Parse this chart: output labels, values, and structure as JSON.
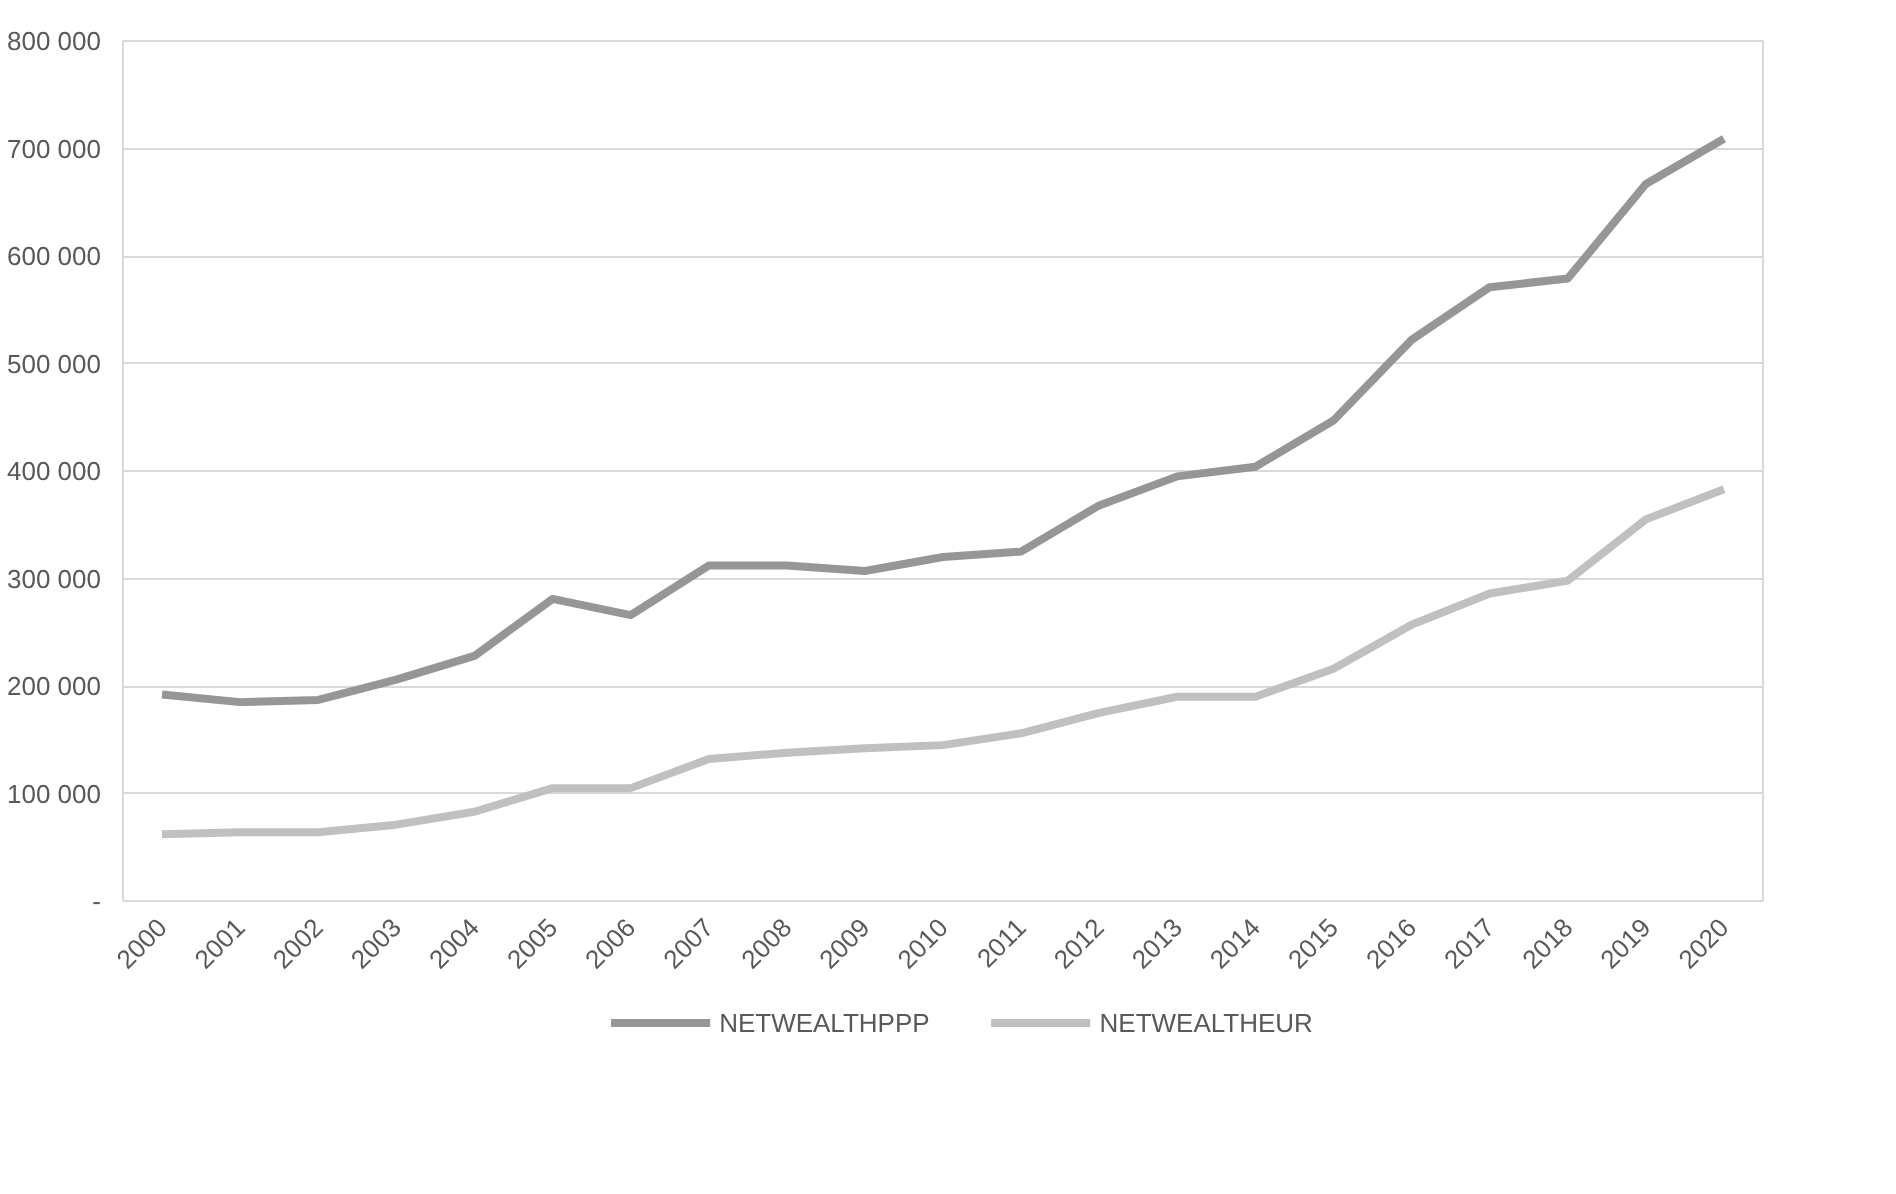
{
  "chart_data": {
    "type": "line",
    "categories": [
      "2000",
      "2001",
      "2002",
      "2003",
      "2004",
      "2005",
      "2006",
      "2007",
      "2008",
      "2009",
      "2010",
      "2011",
      "2012",
      "2013",
      "2014",
      "2015",
      "2016",
      "2017",
      "2018",
      "2019",
      "2020"
    ],
    "series": [
      {
        "name": "NETWEALTHPPP",
        "color": "#969696",
        "values": [
          192000,
          185000,
          187000,
          206000,
          228000,
          281000,
          266000,
          312000,
          312000,
          307000,
          320000,
          325000,
          368000,
          395000,
          404000,
          447000,
          522000,
          571000,
          579000,
          667000,
          709000
        ]
      },
      {
        "name": "NETWEALTHEUR",
        "color": "#c0c0c0",
        "values": [
          62000,
          64000,
          64000,
          71000,
          83000,
          105000,
          105000,
          132000,
          138000,
          142000,
          145000,
          156000,
          175000,
          190000,
          190000,
          216000,
          257000,
          286000,
          298000,
          355000,
          383000
        ]
      }
    ],
    "ylim": [
      0,
      800000
    ],
    "yticks": [
      {
        "value": 0,
        "label": "-"
      },
      {
        "value": 100000,
        "label": "100 000"
      },
      {
        "value": 200000,
        "label": "200 000"
      },
      {
        "value": 300000,
        "label": "300 000"
      },
      {
        "value": 400000,
        "label": "400 000"
      },
      {
        "value": 500000,
        "label": "500 000"
      },
      {
        "value": 600000,
        "label": "600 000"
      },
      {
        "value": 700000,
        "label": "700 000"
      },
      {
        "value": 800000,
        "label": "800 000"
      }
    ],
    "grid": "y",
    "legend": "bottom",
    "marker": "none",
    "line_style": "solid"
  }
}
